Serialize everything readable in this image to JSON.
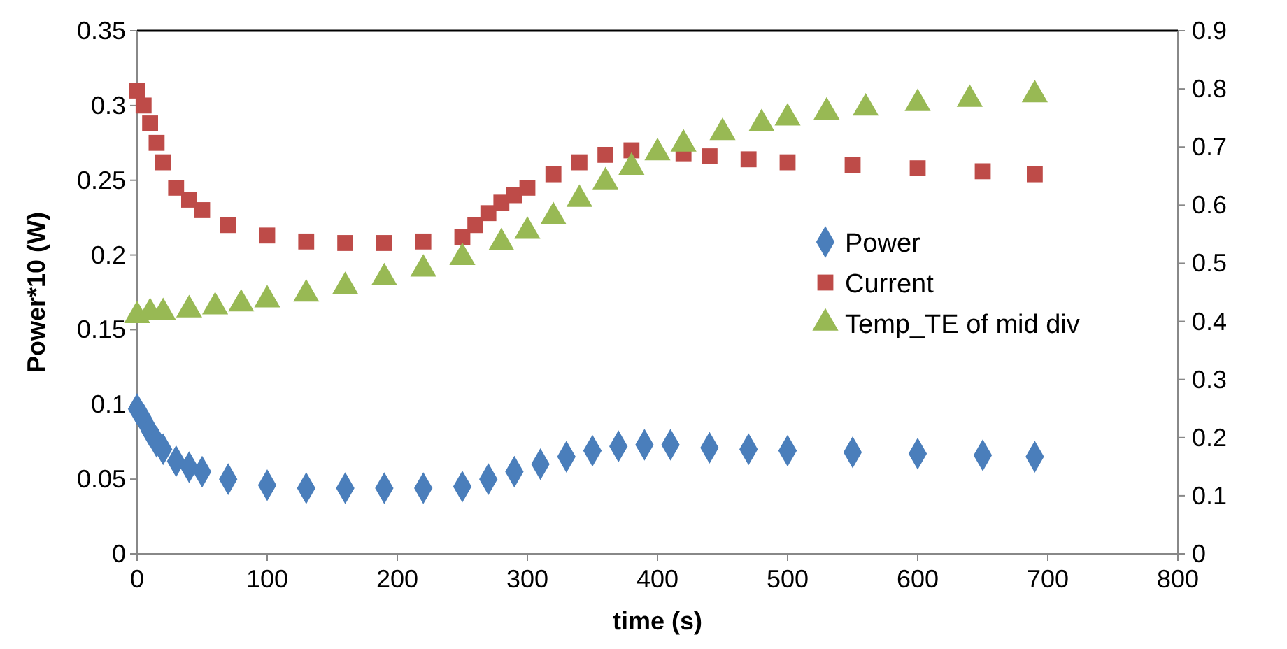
{
  "chart_data": {
    "type": "scatter",
    "xlabel": "time (s)",
    "ylabel": "Power*10 (W)",
    "xlim": [
      0,
      800
    ],
    "xticks": [
      0,
      100,
      200,
      300,
      400,
      500,
      600,
      700,
      800
    ],
    "ylim": [
      0,
      0.35
    ],
    "yticks": [
      0,
      0.05,
      0.1,
      0.15,
      0.2,
      0.25,
      0.3,
      0.35
    ],
    "y2lim": [
      0,
      0.9
    ],
    "y2ticks": [
      0,
      0.1,
      0.2,
      0.3,
      0.4,
      0.5,
      0.6,
      0.7,
      0.8,
      0.9
    ],
    "grid": false,
    "legend": "right",
    "series": [
      {
        "name": "Power",
        "color": "#4a7ebb",
        "marker": "diamond",
        "x": [
          0,
          5,
          10,
          15,
          20,
          30,
          40,
          50,
          70,
          100,
          130,
          160,
          190,
          220,
          250,
          270,
          290,
          310,
          330,
          350,
          370,
          390,
          410,
          440,
          470,
          500,
          550,
          600,
          650,
          690
        ],
        "values": [
          0.097,
          0.09,
          0.082,
          0.075,
          0.07,
          0.062,
          0.058,
          0.055,
          0.05,
          0.046,
          0.044,
          0.044,
          0.044,
          0.044,
          0.045,
          0.05,
          0.055,
          0.06,
          0.065,
          0.069,
          0.072,
          0.073,
          0.073,
          0.071,
          0.07,
          0.069,
          0.068,
          0.067,
          0.066,
          0.065
        ]
      },
      {
        "name": "Current",
        "color": "#be4b48",
        "marker": "square",
        "x": [
          0,
          5,
          10,
          15,
          20,
          30,
          40,
          50,
          70,
          100,
          130,
          160,
          190,
          220,
          250,
          260,
          270,
          280,
          290,
          300,
          320,
          340,
          360,
          380,
          420,
          440,
          470,
          500,
          550,
          600,
          650,
          690
        ],
        "values": [
          0.31,
          0.3,
          0.288,
          0.275,
          0.262,
          0.245,
          0.237,
          0.23,
          0.22,
          0.213,
          0.209,
          0.208,
          0.208,
          0.209,
          0.212,
          0.22,
          0.228,
          0.235,
          0.24,
          0.245,
          0.254,
          0.262,
          0.267,
          0.27,
          0.268,
          0.266,
          0.264,
          0.262,
          0.26,
          0.258,
          0.256,
          0.254
        ]
      },
      {
        "name": "Temp_TE of mid div",
        "color": "#98b954",
        "marker": "triangle",
        "axis": "y2",
        "x": [
          0,
          10,
          20,
          40,
          60,
          80,
          100,
          130,
          160,
          190,
          220,
          250,
          280,
          300,
          320,
          340,
          360,
          380,
          400,
          420,
          450,
          480,
          500,
          530,
          560,
          600,
          640,
          690
        ],
        "values": [
          0.41,
          0.415,
          0.415,
          0.42,
          0.425,
          0.43,
          0.437,
          0.447,
          0.46,
          0.475,
          0.49,
          0.51,
          0.535,
          0.555,
          0.58,
          0.61,
          0.64,
          0.665,
          0.69,
          0.705,
          0.725,
          0.74,
          0.75,
          0.76,
          0.767,
          0.775,
          0.782,
          0.79
        ]
      }
    ]
  }
}
